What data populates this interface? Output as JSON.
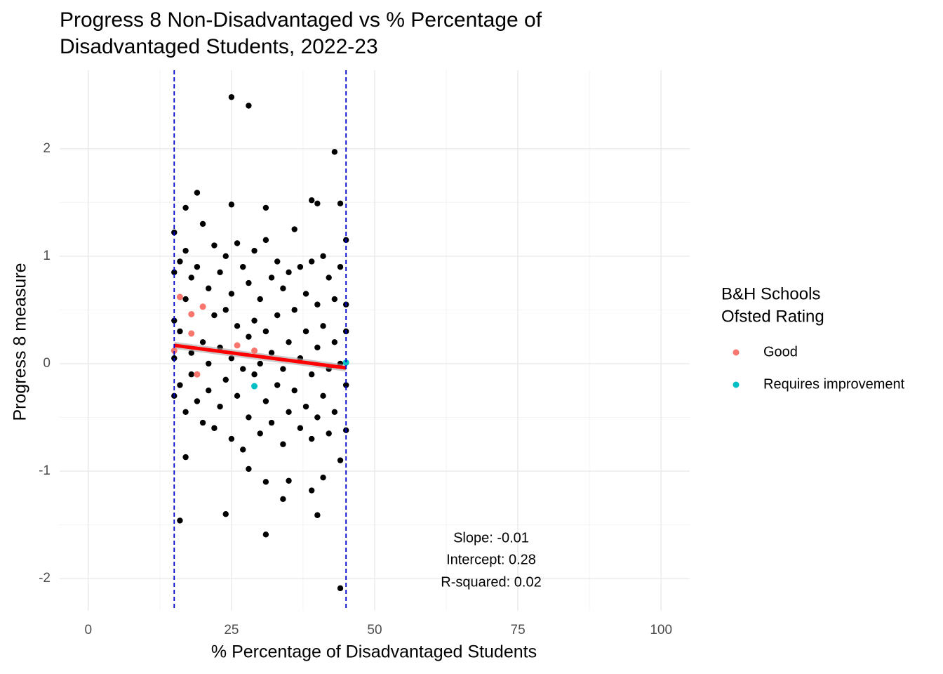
{
  "chart_data": {
    "type": "scatter",
    "title": [
      "Progress 8 Non-Disadvantaged vs % Percentage of",
      "Disadvantaged Students, 2022-23"
    ],
    "x_label": "% Percentage of Disadvantaged Students",
    "y_label": "Progress 8 measure",
    "xlim": [
      -5,
      105
    ],
    "ylim": [
      -2.3,
      2.73
    ],
    "xticks": [
      0,
      25,
      50,
      75,
      100
    ],
    "yticks": [
      -2,
      -1,
      0,
      1,
      2
    ],
    "grid": true,
    "minor_grid": true,
    "legend_title": [
      "B&H Schools",
      "Ofsted Rating"
    ],
    "legend_position": "right",
    "background_points": {
      "color": "#000000",
      "x": [
        25,
        28,
        43,
        19,
        25,
        31,
        39,
        40,
        44,
        17,
        16,
        24,
        31,
        40,
        44,
        34,
        31,
        35,
        28,
        17,
        39,
        41,
        15,
        15,
        15,
        15,
        15,
        16,
        16,
        16,
        17,
        17,
        17,
        18,
        18,
        18,
        19,
        19,
        20,
        20,
        20,
        21,
        21,
        21,
        22,
        22,
        22,
        23,
        23,
        23,
        24,
        24,
        24,
        25,
        25,
        25,
        26,
        26,
        26,
        27,
        27,
        27,
        28,
        28,
        28,
        29,
        29,
        29,
        30,
        30,
        30,
        31,
        31,
        31,
        32,
        32,
        32,
        33,
        33,
        33,
        34,
        34,
        34,
        35,
        35,
        35,
        36,
        36,
        36,
        37,
        37,
        37,
        38,
        38,
        38,
        39,
        39,
        39,
        40,
        40,
        40,
        41,
        41,
        41,
        42,
        42,
        42,
        43,
        43,
        43,
        44,
        44,
        44,
        45,
        45,
        45,
        45,
        45
      ],
      "y": [
        2.48,
        2.4,
        1.97,
        1.59,
        1.48,
        1.45,
        1.52,
        1.49,
        1.49,
        1.45,
        -1.46,
        -1.4,
        -1.59,
        -1.41,
        -2.09,
        -1.26,
        -1.1,
        -1.09,
        -0.98,
        -0.87,
        -1.18,
        -1.06,
        1.22,
        0.85,
        0.4,
        -0.3,
        0.05,
        0.95,
        -0.2,
        0.3,
        1.05,
        0.6,
        -0.45,
        0.8,
        -0.1,
        0.1,
        0.9,
        -0.35,
        1.3,
        0.2,
        -0.55,
        0.7,
        0.0,
        -0.25,
        1.1,
        0.45,
        -0.6,
        0.85,
        0.15,
        -0.4,
        1.0,
        0.5,
        -0.15,
        0.65,
        0.05,
        -0.7,
        1.12,
        0.35,
        -0.3,
        0.9,
        -0.05,
        -0.8,
        0.75,
        0.25,
        -0.5,
        1.05,
        0.4,
        -0.1,
        0.6,
        0.0,
        -0.65,
        1.15,
        0.3,
        -0.35,
        0.8,
        0.1,
        -0.55,
        0.95,
        0.45,
        -0.2,
        0.7,
        -0.05,
        -0.75,
        0.85,
        0.2,
        -0.45,
        1.25,
        0.5,
        -0.25,
        0.9,
        0.05,
        -0.6,
        0.65,
        0.3,
        -0.4,
        0.95,
        -0.1,
        -0.7,
        0.55,
        0.15,
        -0.5,
        1.0,
        0.35,
        -0.3,
        0.8,
        -0.05,
        -0.65,
        0.6,
        0.2,
        -0.45,
        0.9,
        0.0,
        -0.9,
        1.15,
        0.55,
        -0.62,
        0.3,
        -0.2
      ]
    },
    "series": [
      {
        "name": "Good",
        "color": "#F8766D",
        "x": [
          15,
          16,
          18,
          18,
          19,
          20,
          26,
          29
        ],
        "y": [
          0.12,
          0.62,
          0.46,
          0.28,
          -0.1,
          0.53,
          0.17,
          0.12
        ]
      },
      {
        "name": "Requires improvement",
        "color": "#00BFC4",
        "x": [
          29,
          45
        ],
        "y": [
          -0.21,
          0.01
        ]
      }
    ],
    "vlines": {
      "color": "#0000cc",
      "x": [
        15,
        45
      ]
    },
    "fit_line": {
      "color": "#ff0000",
      "x": [
        15,
        45
      ],
      "y": [
        0.17,
        -0.04
      ]
    },
    "annotations": [
      "Slope: -0.01",
      "Intercept: 0.28",
      "R-squared: 0.02"
    ]
  }
}
